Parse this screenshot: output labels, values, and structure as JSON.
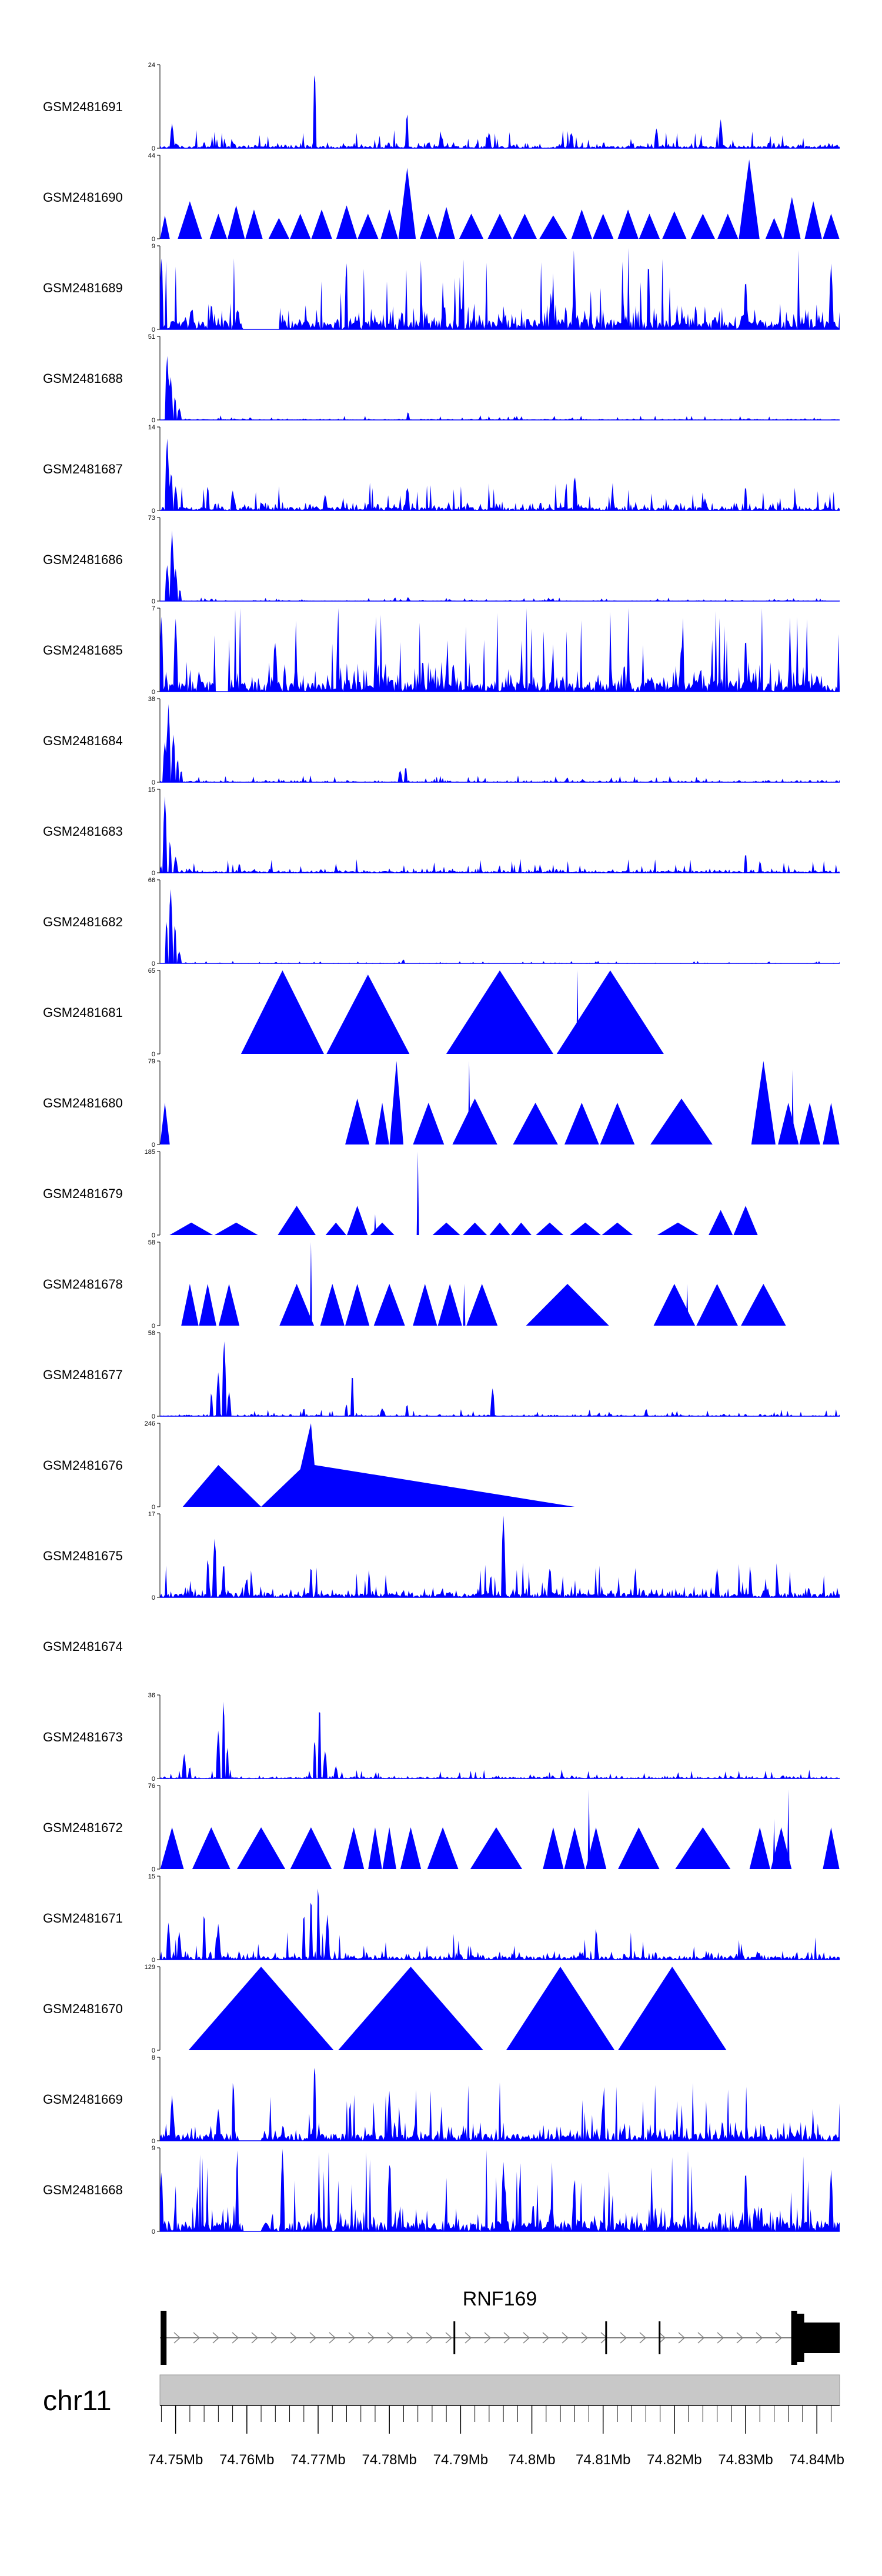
{
  "chart_data": {
    "type": "area",
    "chromosome": "chr11",
    "xlim_mb": [
      74.7478,
      74.8432
    ],
    "tick_values_mb": [
      74.75,
      74.76,
      74.77,
      74.78,
      74.79,
      74.8,
      74.81,
      74.82,
      74.83,
      74.84
    ],
    "tick_labels": [
      "74.75Mb",
      "74.76Mb",
      "74.77Mb",
      "74.78Mb",
      "74.79Mb",
      "74.8Mb",
      "74.81Mb",
      "74.82Mb",
      "74.83Mb",
      "74.84Mb"
    ],
    "fill_color": "#0000ff",
    "axis_color": "#000000",
    "ideogram_color": "#c8c8c8",
    "gene": {
      "name": "RNF169",
      "strand": "+",
      "start_mb": 74.7478,
      "end_mb": 74.8432,
      "exons": [
        {
          "start": 74.7479,
          "end": 74.7485,
          "type": "utr"
        },
        {
          "start": 74.789,
          "end": 74.7891,
          "type": "small"
        },
        {
          "start": 74.8103,
          "end": 74.8104,
          "type": "small"
        },
        {
          "start": 74.8178,
          "end": 74.8179,
          "type": "small"
        },
        {
          "start": 74.8364,
          "end": 74.8369,
          "type": "utr"
        },
        {
          "start": 74.8369,
          "end": 74.838,
          "type": "coding"
        },
        {
          "start": 74.838,
          "end": 74.8432,
          "type": "utr_thick"
        }
      ]
    },
    "tracks": [
      {
        "name": "GSM2481691",
        "ymax": 24,
        "kind": "noise",
        "base": 0.08,
        "spikes": [
          [
            74.7495,
            0.3
          ],
          [
            74.7695,
            1.0
          ],
          [
            74.7825,
            0.45
          ],
          [
            74.794,
            0.2
          ],
          [
            74.8055,
            0.2
          ],
          [
            74.8175,
            0.25
          ],
          [
            74.8265,
            0.35
          ]
        ]
      },
      {
        "name": "GSM2481690",
        "ymax": 44,
        "kind": "triangles",
        "peaks": [
          [
            74.7485,
            0.28
          ],
          [
            74.752,
            0.45
          ],
          [
            74.756,
            0.3
          ],
          [
            74.7585,
            0.4
          ],
          [
            74.761,
            0.35
          ],
          [
            74.7645,
            0.25
          ],
          [
            74.7675,
            0.3
          ],
          [
            74.7705,
            0.35
          ],
          [
            74.774,
            0.4
          ],
          [
            74.777,
            0.3
          ],
          [
            74.78,
            0.35
          ],
          [
            74.7825,
            0.85
          ],
          [
            74.7855,
            0.3
          ],
          [
            74.788,
            0.38
          ],
          [
            74.7915,
            0.3
          ],
          [
            74.7955,
            0.3
          ],
          [
            74.799,
            0.3
          ],
          [
            74.803,
            0.28
          ],
          [
            74.807,
            0.35
          ],
          [
            74.81,
            0.3
          ],
          [
            74.8135,
            0.35
          ],
          [
            74.8165,
            0.3
          ],
          [
            74.82,
            0.33
          ],
          [
            74.824,
            0.3
          ],
          [
            74.8275,
            0.3
          ],
          [
            74.8305,
            0.95
          ],
          [
            74.834,
            0.25
          ],
          [
            74.8365,
            0.5
          ],
          [
            74.8395,
            0.45
          ],
          [
            74.842,
            0.3
          ]
        ]
      },
      {
        "name": "GSM2481689",
        "ymax": 9,
        "kind": "noise",
        "base": 0.35,
        "gap": [
          74.7595,
          74.7645
        ],
        "spikes": [
          [
            74.748,
            0.9
          ],
          [
            74.774,
            0.85
          ],
          [
            74.806,
            0.6
          ],
          [
            74.83,
            0.65
          ],
          [
            74.842,
            0.8
          ]
        ]
      },
      {
        "name": "GSM2481688",
        "ymax": 51,
        "kind": "noise",
        "base": 0.02,
        "spikes": [
          [
            74.7488,
            0.8
          ],
          [
            74.7493,
            0.55
          ],
          [
            74.7499,
            0.3
          ],
          [
            74.7505,
            0.15
          ],
          [
            74.7826,
            0.1
          ]
        ]
      },
      {
        "name": "GSM2481687",
        "ymax": 14,
        "kind": "noise",
        "base": 0.12,
        "spikes": [
          [
            74.7488,
            0.9
          ],
          [
            74.7494,
            0.5
          ],
          [
            74.75,
            0.3
          ],
          [
            74.758,
            0.25
          ],
          [
            74.771,
            0.2
          ],
          [
            74.7825,
            0.3
          ],
          [
            74.806,
            0.45
          ],
          [
            74.83,
            0.3
          ]
        ]
      },
      {
        "name": "GSM2481686",
        "ymax": 73,
        "kind": "noise",
        "base": 0.015,
        "spikes": [
          [
            74.7488,
            0.45
          ],
          [
            74.7495,
            0.85
          ],
          [
            74.75,
            0.4
          ],
          [
            74.7506,
            0.15
          ],
          [
            74.7826,
            0.05
          ]
        ]
      },
      {
        "name": "GSM2481685",
        "ymax": 7,
        "kind": "noise",
        "base": 0.4,
        "gap": [
          74.7555,
          74.7575
        ],
        "spikes": [
          [
            74.748,
            0.95
          ],
          [
            74.75,
            0.9
          ],
          [
            74.764,
            0.6
          ],
          [
            74.821,
            0.6
          ],
          [
            74.83,
            0.7
          ]
        ]
      },
      {
        "name": "GSM2481684",
        "ymax": 38,
        "kind": "noise",
        "base": 0.03,
        "spikes": [
          [
            74.7485,
            0.5
          ],
          [
            74.749,
            0.95
          ],
          [
            74.7497,
            0.6
          ],
          [
            74.7503,
            0.3
          ],
          [
            74.7508,
            0.15
          ],
          [
            74.7815,
            0.15
          ],
          [
            74.7823,
            0.2
          ]
        ]
      },
      {
        "name": "GSM2481683",
        "ymax": 15,
        "kind": "noise",
        "base": 0.06,
        "spikes": [
          [
            74.7485,
            0.95
          ],
          [
            74.7492,
            0.4
          ],
          [
            74.75,
            0.2
          ],
          [
            74.759,
            0.1
          ],
          [
            74.83,
            0.25
          ],
          [
            74.832,
            0.15
          ]
        ]
      },
      {
        "name": "GSM2481682",
        "ymax": 66,
        "kind": "noise",
        "base": 0.01,
        "spikes": [
          [
            74.7487,
            0.55
          ],
          [
            74.7493,
            0.95
          ],
          [
            74.7499,
            0.5
          ],
          [
            74.7505,
            0.15
          ],
          [
            74.782,
            0.05
          ]
        ]
      },
      {
        "name": "GSM2481681",
        "ymax": 65,
        "kind": "triangles",
        "peaks": [
          [
            74.765,
            1.0
          ],
          [
            74.777,
            0.95
          ],
          [
            74.7955,
            1.0
          ],
          [
            74.811,
            1.0
          ]
        ],
        "extra_spikes": [
          [
            74.7767,
            1.0
          ],
          [
            74.8064,
            1.0
          ]
        ]
      },
      {
        "name": "GSM2481680",
        "ymax": 79,
        "kind": "triangles",
        "peaks": [
          [
            74.7485,
            0.5
          ],
          [
            74.7755,
            0.55
          ],
          [
            74.779,
            0.5
          ],
          [
            74.781,
            1.0
          ],
          [
            74.7855,
            0.5
          ],
          [
            74.792,
            0.55
          ],
          [
            74.8005,
            0.5
          ],
          [
            74.807,
            0.5
          ],
          [
            74.812,
            0.5
          ],
          [
            74.821,
            0.55
          ],
          [
            74.8325,
            1.0
          ],
          [
            74.836,
            0.5
          ],
          [
            74.839,
            0.5
          ],
          [
            74.842,
            0.5
          ]
        ],
        "extra_spikes": [
          [
            74.7912,
            1.0
          ],
          [
            74.8366,
            0.9
          ]
        ]
      },
      {
        "name": "GSM2481679",
        "ymax": 185,
        "kind": "triangles",
        "peaks": [
          [
            74.7522,
            0.15
          ],
          [
            74.7585,
            0.15
          ],
          [
            74.767,
            0.35
          ],
          [
            74.7725,
            0.15
          ],
          [
            74.7755,
            0.35
          ],
          [
            74.779,
            0.15
          ],
          [
            74.788,
            0.15
          ],
          [
            74.792,
            0.15
          ],
          [
            74.7955,
            0.15
          ],
          [
            74.7985,
            0.15
          ],
          [
            74.8025,
            0.15
          ],
          [
            74.8075,
            0.15
          ],
          [
            74.812,
            0.15
          ],
          [
            74.8205,
            0.15
          ],
          [
            74.8265,
            0.3
          ],
          [
            74.83,
            0.35
          ]
        ],
        "extra_spikes": [
          [
            74.784,
            1.0
          ],
          [
            74.778,
            0.25
          ]
        ]
      },
      {
        "name": "GSM2481678",
        "ymax": 58,
        "kind": "triangles",
        "peaks": [
          [
            74.752,
            0.5
          ],
          [
            74.7545,
            0.5
          ],
          [
            74.7575,
            0.5
          ],
          [
            74.767,
            0.5
          ],
          [
            74.772,
            0.5
          ],
          [
            74.7755,
            0.5
          ],
          [
            74.78,
            0.5
          ],
          [
            74.785,
            0.5
          ],
          [
            74.7885,
            0.5
          ],
          [
            74.793,
            0.5
          ],
          [
            74.805,
            0.5
          ],
          [
            74.82,
            0.5
          ],
          [
            74.826,
            0.5
          ],
          [
            74.8325,
            0.5
          ]
        ],
        "extra_spikes": [
          [
            74.769,
            1.0
          ],
          [
            74.7905,
            0.5
          ],
          [
            74.8218,
            0.5
          ]
        ]
      },
      {
        "name": "GSM2481677",
        "ymax": 58,
        "kind": "noise",
        "base": 0.03,
        "spikes": [
          [
            74.755,
            0.3
          ],
          [
            74.756,
            0.55
          ],
          [
            74.7568,
            0.95
          ],
          [
            74.7575,
            0.3
          ],
          [
            74.768,
            0.1
          ],
          [
            74.774,
            0.15
          ],
          [
            74.7748,
            0.55
          ],
          [
            74.779,
            0.1
          ],
          [
            74.7825,
            0.15
          ],
          [
            74.7945,
            0.35
          ],
          [
            74.816,
            0.08
          ]
        ]
      },
      {
        "name": "GSM2481676",
        "ymax": 246,
        "kind": "polygon",
        "points": [
          [
            74.751,
            0
          ],
          [
            74.756,
            0.5
          ],
          [
            74.762,
            0
          ],
          [
            74.7675,
            0.45
          ],
          [
            74.769,
            1.0
          ],
          [
            74.7695,
            0.5
          ],
          [
            74.806,
            0
          ],
          [
            74.751,
            0
          ]
        ]
      },
      {
        "name": "GSM2481675",
        "ymax": 17,
        "kind": "noise",
        "base": 0.15,
        "spikes": [
          [
            74.7545,
            0.5
          ],
          [
            74.7555,
            0.75
          ],
          [
            74.7567,
            0.4
          ],
          [
            74.76,
            0.25
          ],
          [
            74.769,
            0.4
          ],
          [
            74.796,
            1.0
          ],
          [
            74.8025,
            0.35
          ],
          [
            74.8145,
            0.3
          ],
          [
            74.826,
            0.35
          ]
        ]
      },
      {
        "name": "GSM2481674",
        "ymax": 0,
        "kind": "empty"
      },
      {
        "name": "GSM2481673",
        "ymax": 36,
        "kind": "noise",
        "base": 0.04,
        "spikes": [
          [
            74.7512,
            0.3
          ],
          [
            74.752,
            0.15
          ],
          [
            74.756,
            0.6
          ],
          [
            74.7567,
            1.0
          ],
          [
            74.7573,
            0.4
          ],
          [
            74.7695,
            0.5
          ],
          [
            74.7702,
            0.95
          ],
          [
            74.771,
            0.35
          ],
          [
            74.7725,
            0.15
          ]
        ]
      },
      {
        "name": "GSM2481672",
        "ymax": 76,
        "kind": "triangles",
        "peaks": [
          [
            74.7495,
            0.5
          ],
          [
            74.755,
            0.5
          ],
          [
            74.762,
            0.5
          ],
          [
            74.769,
            0.5
          ],
          [
            74.775,
            0.5
          ],
          [
            74.778,
            0.5
          ],
          [
            74.78,
            0.5
          ],
          [
            74.783,
            0.5
          ],
          [
            74.7875,
            0.5
          ],
          [
            74.795,
            0.5
          ],
          [
            74.803,
            0.5
          ],
          [
            74.806,
            0.5
          ],
          [
            74.809,
            0.5
          ],
          [
            74.815,
            0.5
          ],
          [
            74.824,
            0.5
          ],
          [
            74.832,
            0.5
          ],
          [
            74.835,
            0.5
          ],
          [
            74.842,
            0.5
          ]
        ],
        "extra_spikes": [
          [
            74.808,
            0.95
          ],
          [
            74.836,
            0.95
          ],
          [
            74.834,
            0.6
          ]
        ]
      },
      {
        "name": "GSM2481671",
        "ymax": 15,
        "kind": "noise",
        "base": 0.12,
        "spikes": [
          [
            74.749,
            0.45
          ],
          [
            74.7505,
            0.35
          ],
          [
            74.754,
            0.6
          ],
          [
            74.756,
            0.45
          ],
          [
            74.768,
            0.6
          ],
          [
            74.769,
            0.8
          ],
          [
            74.77,
            0.95
          ],
          [
            74.7713,
            0.55
          ],
          [
            74.809,
            0.4
          ]
        ]
      },
      {
        "name": "GSM2481670",
        "ymax": 129,
        "kind": "triangles",
        "peaks": [
          [
            74.762,
            1.0
          ],
          [
            74.783,
            1.0
          ],
          [
            74.804,
            1.0
          ],
          [
            74.8197,
            1.0
          ]
        ]
      },
      {
        "name": "GSM2481669",
        "ymax": 8,
        "kind": "noise",
        "base": 0.25,
        "gap": [
          74.759,
          74.762
        ],
        "spikes": [
          [
            74.7495,
            0.55
          ],
          [
            74.756,
            0.4
          ],
          [
            74.7695,
            1.0
          ],
          [
            74.7745,
            0.5
          ],
          [
            74.78,
            0.6
          ],
          [
            74.81,
            0.5
          ]
        ]
      },
      {
        "name": "GSM2481668",
        "ymax": 9,
        "kind": "noise",
        "base": 0.35,
        "gap": [
          74.7595,
          74.762
        ],
        "spikes": [
          [
            74.748,
            0.75
          ],
          [
            74.765,
            1.0
          ],
          [
            74.78,
            0.8
          ],
          [
            74.796,
            0.85
          ],
          [
            74.806,
            0.7
          ],
          [
            74.83,
            0.8
          ],
          [
            74.842,
            0.75
          ]
        ]
      }
    ]
  }
}
